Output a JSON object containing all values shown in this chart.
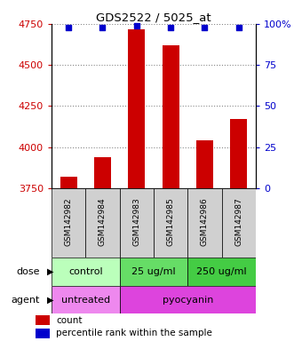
{
  "title": "GDS2522 / 5025_at",
  "samples": [
    "GSM142982",
    "GSM142984",
    "GSM142983",
    "GSM142985",
    "GSM142986",
    "GSM142987"
  ],
  "counts": [
    3820,
    3940,
    4720,
    4620,
    4040,
    4170
  ],
  "percentile_ranks": [
    98,
    98,
    99,
    98,
    98,
    98
  ],
  "ylim_left": [
    3750,
    4750
  ],
  "yticks_left": [
    3750,
    4000,
    4250,
    4500,
    4750
  ],
  "ylim_right": [
    0,
    100
  ],
  "yticks_right": [
    0,
    25,
    50,
    75,
    100
  ],
  "bar_color": "#cc0000",
  "dot_color": "#0000cc",
  "dose_groups": [
    {
      "label": "control",
      "start": 0,
      "end": 2,
      "color": "#bbffbb"
    },
    {
      "label": "25 ug/ml",
      "start": 2,
      "end": 4,
      "color": "#66dd66"
    },
    {
      "label": "250 ug/ml",
      "start": 4,
      "end": 6,
      "color": "#44cc44"
    }
  ],
  "agent_groups": [
    {
      "label": "untreated",
      "start": 0,
      "end": 2,
      "color": "#ee88ee"
    },
    {
      "label": "pyocyanin",
      "start": 2,
      "end": 6,
      "color": "#dd44dd"
    }
  ],
  "dose_label": "dose",
  "agent_label": "agent",
  "legend_count_color": "#cc0000",
  "legend_dot_color": "#0000cc",
  "legend_count_text": "count",
  "legend_dot_text": "percentile rank within the sample",
  "tick_color_left": "#cc0000",
  "tick_color_right": "#0000cc",
  "grid_color": "#888888",
  "bar_width": 0.5,
  "xlabel_bg": "#d0d0d0",
  "sample_fontsize": 6.5,
  "label_fontsize": 8,
  "row_fontsize": 8
}
